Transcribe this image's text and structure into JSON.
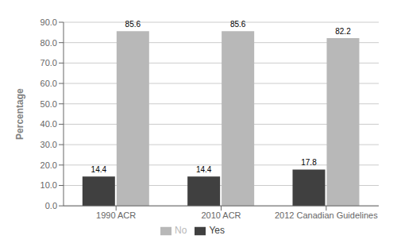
{
  "chart_data": {
    "type": "bar",
    "categories": [
      "1990 ACR",
      "2010 ACR",
      "2012 Canadian Guidelines"
    ],
    "series": [
      {
        "name": "Yes",
        "color": "#404040",
        "values": [
          14.4,
          14.4,
          17.8
        ]
      },
      {
        "name": "No",
        "color": "#b8b8b8",
        "values": [
          85.6,
          85.6,
          82.2
        ]
      }
    ],
    "ylabel": "Percentage",
    "ylim": [
      0,
      90
    ],
    "yticks": [
      {
        "value": 0.0,
        "label": "0.0"
      },
      {
        "value": 10.0,
        "label": "10.0"
      },
      {
        "value": 20.0,
        "label": "20.0"
      },
      {
        "value": 30.0,
        "label": "30.0"
      },
      {
        "value": 40.0,
        "label": "40.0"
      },
      {
        "value": 50.0,
        "label": "50.0"
      },
      {
        "value": 60.0,
        "label": "60.0"
      },
      {
        "value": 70.0,
        "label": "70.0"
      },
      {
        "value": 80.0,
        "label": "80.0"
      },
      {
        "value": 90.0,
        "label": "90.0"
      }
    ],
    "grid": true,
    "legend": "bottom",
    "data_labels": true
  }
}
